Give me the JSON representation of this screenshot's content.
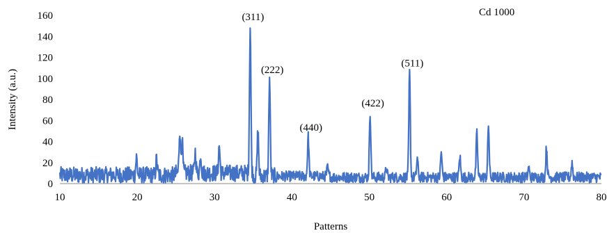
{
  "chart_data": {
    "type": "line",
    "xlabel": "Patterns",
    "ylabel": "Intensity (a.u.)",
    "xlim": [
      10,
      80
    ],
    "ylim": [
      0,
      160
    ],
    "x_ticks": [
      "10",
      "20",
      "30",
      "40",
      "50",
      "60",
      "70",
      "80"
    ],
    "y_ticks": [
      "0",
      "20",
      "40",
      "60",
      "80",
      "100",
      "120",
      "140",
      "160"
    ],
    "grid": false,
    "legend": "top-right",
    "series": [
      {
        "name": "Cd 1000",
        "color": "#4472C4",
        "peaks": [
          {
            "x": 19.9,
            "y": 25
          },
          {
            "x": 22.5,
            "y": 23
          },
          {
            "x": 25.5,
            "y": 52
          },
          {
            "x": 25.8,
            "y": 40
          },
          {
            "x": 27.5,
            "y": 30
          },
          {
            "x": 28.2,
            "y": 27
          },
          {
            "x": 30.6,
            "y": 36
          },
          {
            "x": 34.6,
            "y": 150
          },
          {
            "x": 35.6,
            "y": 50
          },
          {
            "x": 37.1,
            "y": 100
          },
          {
            "x": 42.1,
            "y": 45
          },
          {
            "x": 44.6,
            "y": 15
          },
          {
            "x": 50.1,
            "y": 68
          },
          {
            "x": 52.2,
            "y": 15
          },
          {
            "x": 55.2,
            "y": 106
          },
          {
            "x": 56.2,
            "y": 24
          },
          {
            "x": 59.3,
            "y": 30
          },
          {
            "x": 61.7,
            "y": 26
          },
          {
            "x": 63.9,
            "y": 48
          },
          {
            "x": 65.4,
            "y": 56
          },
          {
            "x": 70.6,
            "y": 15
          },
          {
            "x": 72.9,
            "y": 35
          },
          {
            "x": 76.2,
            "y": 20
          }
        ]
      }
    ],
    "annotations": [
      {
        "text": "(311)",
        "x": 34.6,
        "y": 150
      },
      {
        "text": "(222)",
        "x": 37.1,
        "y": 100
      },
      {
        "text": "(440)",
        "x": 42.1,
        "y": 45
      },
      {
        "text": "(422)",
        "x": 50.1,
        "y": 68
      },
      {
        "text": "(511)",
        "x": 55.2,
        "y": 106
      }
    ]
  }
}
